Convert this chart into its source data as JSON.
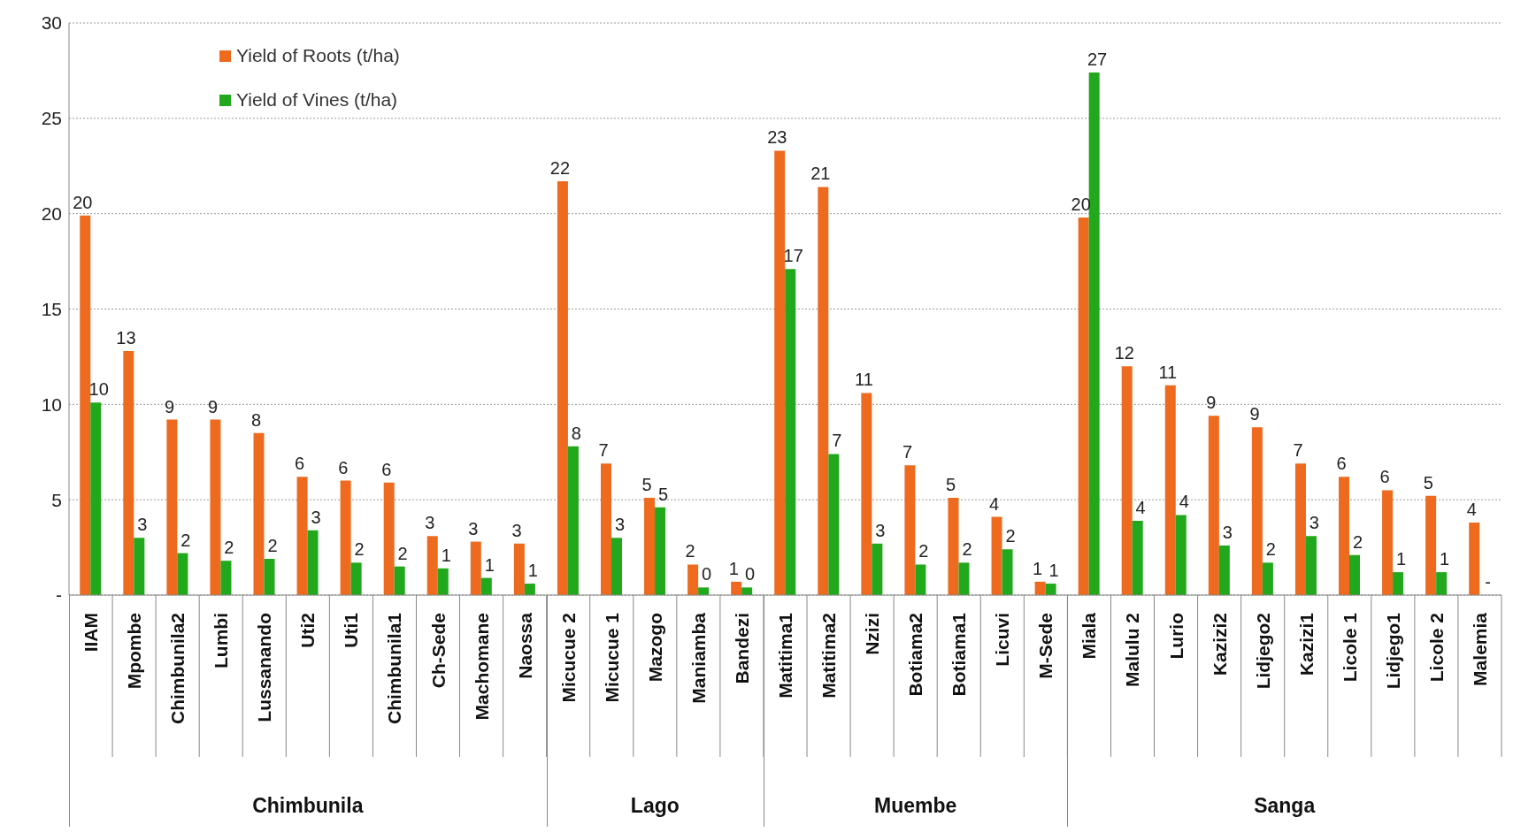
{
  "chart_data": {
    "type": "bar",
    "categories": [
      "IIAM",
      "Mpombe",
      "Chimbunila2",
      "Lumbi",
      "Lussanando",
      "Uti2",
      "Uti1",
      "Chimbunila1",
      "Ch-Sede",
      "Machomane",
      "Naossa",
      "Micucue 2",
      "Micucue 1",
      "Mazogo",
      "Maniamba",
      "Bandezi",
      "Matitima1",
      "Matitima2",
      "Nzizi",
      "Botiama2",
      "Botiama1",
      "Licuvi",
      "M-Sede",
      "Miala",
      "Malulu  2",
      "Lurio",
      "Kazizi2",
      "Lidjego2",
      "Kazizi1",
      "Licole 1",
      "Lidjego1",
      "Licole 2",
      "Malemia"
    ],
    "series": [
      {
        "name": "Yield of Roots (t/ha)",
        "color": "#ed6a1e",
        "values": [
          19.9,
          12.8,
          9.2,
          9.2,
          8.5,
          6.2,
          6.0,
          5.9,
          3.1,
          2.8,
          2.7,
          21.7,
          6.9,
          5.1,
          1.6,
          0.7,
          23.3,
          21.4,
          10.6,
          6.8,
          5.1,
          4.1,
          0.7,
          19.8,
          12.0,
          11.0,
          9.4,
          8.8,
          6.9,
          6.2,
          5.5,
          5.2,
          3.8
        ],
        "value_labels": [
          "20",
          "13",
          "9",
          "9",
          "8",
          "6",
          "6",
          "6",
          "3",
          "3",
          "3",
          "22",
          "7",
          "5",
          "2",
          "1",
          "23",
          "21",
          "11",
          "7",
          "5",
          "4",
          "1",
          "20",
          "12",
          "11",
          "9",
          "9",
          "7",
          "6",
          "6",
          "5",
          "4"
        ]
      },
      {
        "name": "Yield of Vines (t/ha)",
        "color": "#22a81c",
        "values": [
          10.1,
          3.0,
          2.2,
          1.8,
          1.9,
          3.4,
          1.7,
          1.5,
          1.4,
          0.9,
          0.6,
          7.8,
          3.0,
          4.6,
          0.4,
          0.4,
          17.1,
          7.4,
          2.7,
          1.6,
          1.7,
          2.4,
          0.6,
          27.4,
          3.9,
          4.2,
          2.6,
          1.7,
          3.1,
          2.1,
          1.2,
          1.2,
          0
        ],
        "value_labels": [
          "10",
          "3",
          "2",
          "2",
          "2",
          "3",
          "2",
          "2",
          "1",
          "1",
          "1",
          "8",
          "3",
          "5",
          "0",
          "0",
          "17",
          "7",
          "3",
          "2",
          "2",
          "2",
          "1",
          "27",
          "4",
          "4",
          "3",
          "2",
          "3",
          "2",
          "1",
          "1",
          "-"
        ]
      }
    ],
    "ylim": [
      0,
      30
    ],
    "yticks": [
      {
        "value": 0,
        "label": "-"
      },
      5,
      10,
      15,
      20,
      25,
      30
    ],
    "grid": "y",
    "legend": "top left",
    "annotations": [
      "Chimbunila",
      "Lago",
      "Muembe",
      "Sanga"
    ]
  }
}
